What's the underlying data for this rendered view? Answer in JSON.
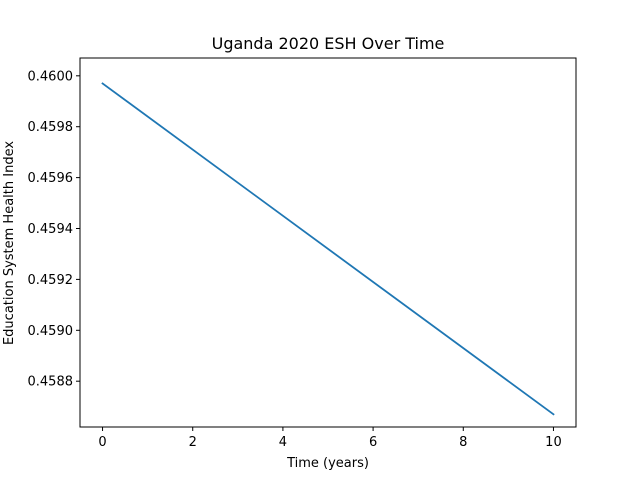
{
  "chart_data": {
    "type": "line",
    "title": "Uganda 2020 ESH Over Time",
    "xlabel": "Time (years)",
    "ylabel": "Education System Health Index",
    "xlim": [
      -0.5,
      10.5
    ],
    "ylim": [
      0.45862,
      0.46007
    ],
    "x_ticks": [
      "0",
      "2",
      "4",
      "6",
      "8",
      "10"
    ],
    "y_ticks": [
      "0.4588",
      "0.4590",
      "0.4592",
      "0.4594",
      "0.4596",
      "0.4598",
      "0.4600"
    ],
    "grid": false,
    "series": [
      {
        "color": "#1f77b4",
        "x": [
          0,
          10
        ],
        "y": [
          0.45997,
          0.45867
        ]
      }
    ]
  }
}
